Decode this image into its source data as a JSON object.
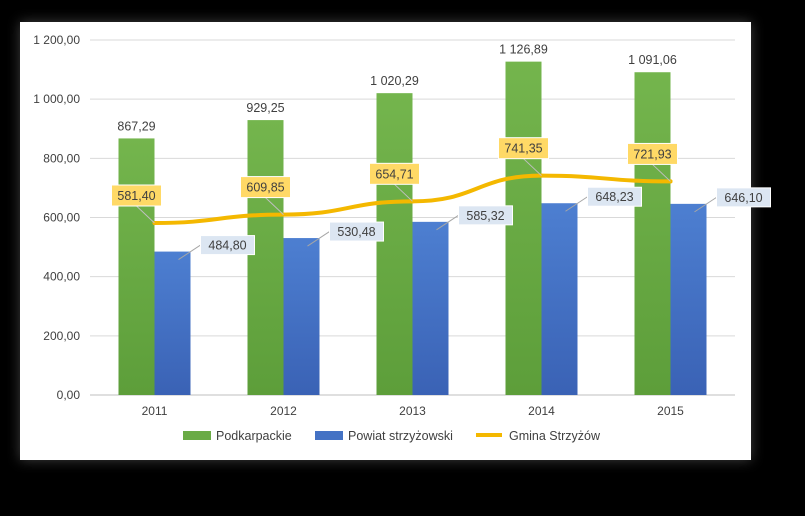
{
  "chart_data": {
    "type": "bar",
    "categories": [
      "2011",
      "2012",
      "2013",
      "2014",
      "2015"
    ],
    "series": [
      {
        "name": "Podkarpackie",
        "kind": "bar",
        "color": "#6aab46",
        "values": [
          867.29,
          929.25,
          1020.29,
          1126.89,
          1091.06
        ],
        "labels": [
          "867,29",
          "929,25",
          "1 020,29",
          "1 126,89",
          "1 091,06"
        ]
      },
      {
        "name": "Powiat strzyżowski",
        "kind": "bar",
        "color": "#4472c4",
        "values": [
          484.8,
          530.48,
          585.32,
          648.23,
          646.1
        ],
        "labels": [
          "484,80",
          "530,48",
          "585,32",
          "648,23",
          "646,10"
        ]
      },
      {
        "name": "Gmina Strzyżów",
        "kind": "line",
        "color": "#f4b800",
        "values": [
          581.4,
          609.85,
          654.71,
          741.35,
          721.93
        ],
        "labels": [
          "581,40",
          "609,85",
          "654,71",
          "741,35",
          "721,93"
        ]
      }
    ],
    "yticks": [
      0,
      200,
      400,
      600,
      800,
      1000,
      1200
    ],
    "ytick_labels": [
      "0,00",
      "200,00",
      "400,00",
      "600,00",
      "800,00",
      "1 000,00",
      "1 200,00"
    ],
    "ylim": [
      0,
      1200
    ],
    "grid": true,
    "legend_position": "bottom",
    "title": "",
    "xlabel": "",
    "ylabel": ""
  }
}
